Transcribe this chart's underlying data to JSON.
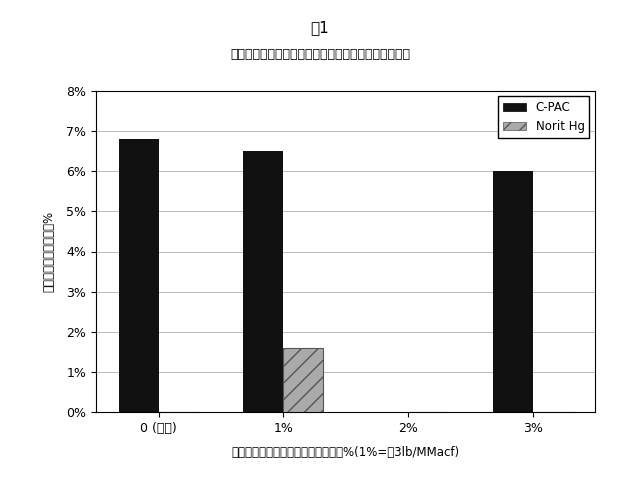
{
  "title_top": "囱1",
  "title_sub": "粉末活性炭と共にコンクリートの中に連行された空気",
  "xlabel": "フライアッシュの中の吸着剤の重量%(1%=約3lb/MMacf)",
  "ylabel": "連行された空気の体積%",
  "categories": [
    "0 (対照)",
    "1%",
    "2%",
    "3%"
  ],
  "cpac_values": [
    6.8,
    6.5,
    0.0,
    6.0
  ],
  "norit_values": [
    0.0,
    1.6,
    0.0,
    0.0
  ],
  "ylim": [
    0,
    8
  ],
  "yticks": [
    0,
    1,
    2,
    3,
    4,
    5,
    6,
    7,
    8
  ],
  "ytick_labels": [
    "0%",
    "1%",
    "2%",
    "3%",
    "4%",
    "5%",
    "6%",
    "7%",
    "8%"
  ],
  "cpac_color": "#111111",
  "norit_color": "#aaaaaa",
  "bar_width": 0.32,
  "background_color": "#ffffff",
  "plot_bg": "#ffffff",
  "legend_cpac": "C-PAC",
  "legend_norit": "Norit Hg",
  "grid_color": "#bbbbbb",
  "figsize": [
    6.4,
    5.03
  ],
  "dpi": 100
}
